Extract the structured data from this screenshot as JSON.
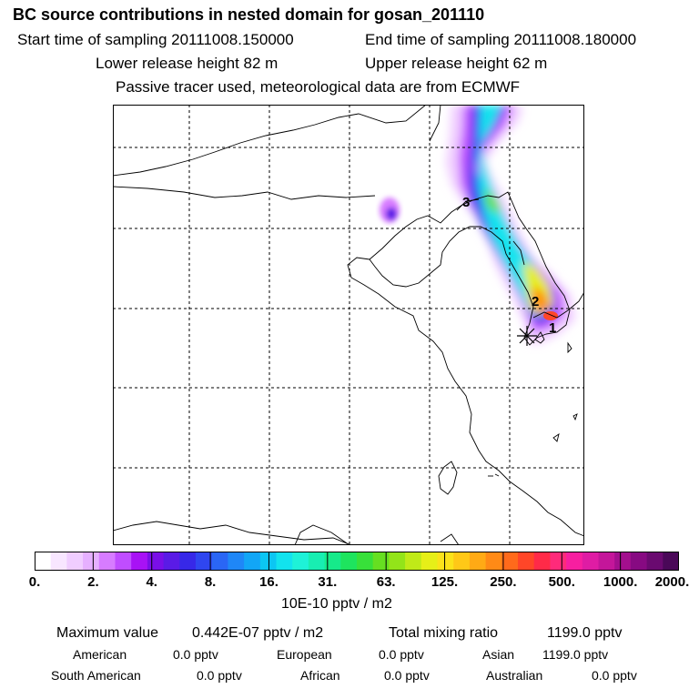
{
  "header": {
    "title": "BC  source contributions in nested domain for gosan_201110",
    "start_time": "Start time of sampling 20111008.150000",
    "end_time": "End time of sampling 20111008.180000",
    "lower_release": "Lower release height   82 m",
    "upper_release": "Upper release height   62 m",
    "tracer_note": "Passive tracer used, meteorological data are from ECMWF"
  },
  "map": {
    "trajectory_labels": [
      "1",
      "2",
      "3"
    ]
  },
  "colorbar": {
    "ticks": [
      "0.",
      "2.",
      "4.",
      "8.",
      "16.",
      "31.",
      "63.",
      "125.",
      "250.",
      "500.",
      "1000.",
      "2000."
    ],
    "units": "10E-10 pptv / m2",
    "colors": [
      "#ffffff",
      "#f8e6ff",
      "#f0cdff",
      "#e6b0ff",
      "#d77cff",
      "#c04dff",
      "#a812f5",
      "#7a0fe8",
      "#5a1be6",
      "#3728e8",
      "#2f46f0",
      "#2a66f5",
      "#1f87f7",
      "#12a6f6",
      "#0cc6f3",
      "#12e3ee",
      "#1ef2d8",
      "#18eeb2",
      "#16ea8a",
      "#1ee45e",
      "#38e03a",
      "#66df21",
      "#93e419",
      "#c0ea18",
      "#e6ef18",
      "#fbe21a",
      "#ffc817",
      "#ffaa15",
      "#ff8a16",
      "#ff6a1b",
      "#ff4628",
      "#ff2a48",
      "#ff2a7a",
      "#f71fa0",
      "#df1ca4",
      "#c4169a",
      "#a30f8e",
      "#870a82",
      "#6a0a70",
      "#4a0858"
    ]
  },
  "stats": {
    "max_label": "Maximum value",
    "max_value": "0.442E-07 pptv / m2",
    "total_label": "Total mixing ratio",
    "total_value": "1199.0 pptv",
    "american_label": "American",
    "american_value": "0.0 pptv",
    "european_label": "European",
    "european_value": "0.0 pptv",
    "asian_label": "Asian",
    "asian_value": "1199.0 pptv",
    "south_american_label": "South American",
    "south_american_value": "0.0 pptv",
    "african_label": "African",
    "african_value": "0.0 pptv",
    "australian_label": "Australian",
    "australian_value": "0.0 pptv"
  }
}
